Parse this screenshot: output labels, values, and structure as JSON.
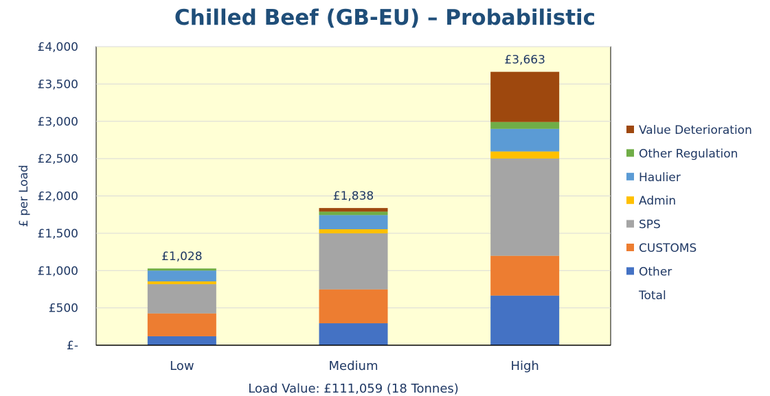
{
  "chart_data": {
    "type": "bar",
    "stacked": true,
    "title": "Chilled Beef (GB-EU) – Probabilistic",
    "xlabel": "Load Value: £111,059 (18 Tonnes)",
    "ylabel": "£ per Load",
    "ylim": [
      0,
      4000
    ],
    "yticks": [
      0,
      500,
      1000,
      1500,
      2000,
      2500,
      3000,
      3500,
      4000
    ],
    "ytick_labels": [
      "£-",
      "£500",
      "£1,000",
      "£1,500",
      "£2,000",
      "£2,500",
      "£3,000",
      "£3,500",
      "£4,000"
    ],
    "grid": true,
    "legend_position": "right",
    "background_color": "#ffffd5",
    "categories": [
      "Low",
      "Medium",
      "High"
    ],
    "series": [
      {
        "name": "Other",
        "color": "#4472c4",
        "values": [
          120,
          294,
          665
        ]
      },
      {
        "name": "CUSTOMS",
        "color": "#ed7d31",
        "values": [
          306,
          454,
          533
        ]
      },
      {
        "name": "SPS",
        "color": "#a5a5a5",
        "values": [
          392,
          751,
          1303
        ]
      },
      {
        "name": "Admin",
        "color": "#ffc000",
        "values": [
          37,
          55,
          95
        ]
      },
      {
        "name": "Haulier",
        "color": "#5b9bd5",
        "values": [
          145,
          190,
          303
        ]
      },
      {
        "name": "Other Regulation",
        "color": "#70ad47",
        "values": [
          28,
          46,
          92
        ]
      },
      {
        "name": "Value Deterioration",
        "color": "#9e480e",
        "values": [
          0,
          48,
          672
        ]
      }
    ],
    "totals": {
      "name": "Total",
      "values": [
        1028,
        1838,
        3663
      ],
      "labels": [
        "£1,028",
        "£1,838",
        "£3,663"
      ]
    }
  }
}
